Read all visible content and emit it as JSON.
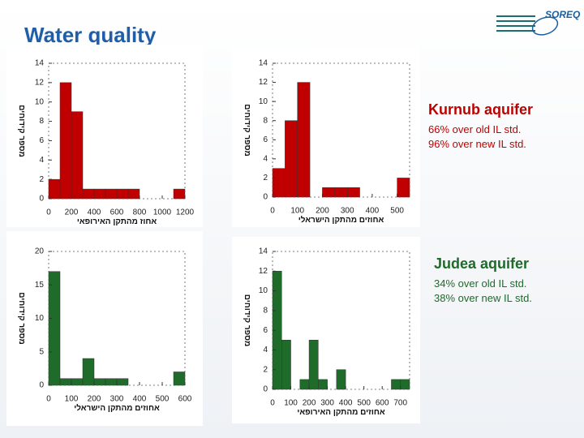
{
  "header": {
    "title": "Water quality",
    "logo": "SOREQ"
  },
  "notes": [
    {
      "heading": "Kurnub aquifer",
      "lines": [
        "66% over old IL std.",
        "96% over new IL std."
      ]
    },
    {
      "heading": "Judea aquifer",
      "lines": [
        "34% over old IL std.",
        "38% over new IL std."
      ]
    }
  ],
  "chart_data": [
    {
      "type": "histogram",
      "color": "#c00000",
      "ylabel": "מספר קידוחים",
      "xlabel": "אחוז מהתקן האירופאי",
      "bins": [
        0,
        100,
        200,
        300,
        400,
        500,
        600,
        700,
        800,
        900,
        1000,
        1100,
        1200
      ],
      "values": [
        2,
        12,
        9,
        1,
        1,
        1,
        1,
        1,
        0,
        0,
        0,
        1
      ],
      "xlim": [
        0,
        1200
      ],
      "xticks": [
        0,
        200,
        400,
        600,
        800,
        1000,
        1200
      ],
      "ylim": [
        0,
        14
      ],
      "yticks": [
        0,
        2,
        4,
        6,
        8,
        10,
        12,
        14
      ]
    },
    {
      "type": "histogram",
      "color": "#c00000",
      "ylabel": "מספר קידוחים",
      "xlabel": "אחוזים מהתקן הישראלי",
      "bins": [
        0,
        50,
        100,
        150,
        200,
        250,
        300,
        350,
        400,
        450,
        500,
        550
      ],
      "values": [
        3,
        8,
        12,
        0,
        1,
        1,
        1,
        0,
        0,
        0,
        2
      ],
      "xlim": [
        0,
        550
      ],
      "xticks": [
        0,
        100,
        200,
        300,
        400,
        500
      ],
      "ylim": [
        0,
        14
      ],
      "yticks": [
        0,
        2,
        4,
        6,
        8,
        10,
        12,
        14
      ]
    },
    {
      "type": "histogram",
      "color": "#1e6b2a",
      "ylabel": "מספר קידוחים",
      "xlabel": "אחוזים מהתקן הישראלי",
      "bins": [
        0,
        50,
        100,
        150,
        200,
        250,
        300,
        350,
        400,
        450,
        500,
        550,
        600
      ],
      "values": [
        17,
        1,
        1,
        4,
        1,
        1,
        1,
        0,
        0,
        0,
        0,
        2
      ],
      "xlim": [
        0,
        600
      ],
      "xticks": [
        0,
        100,
        200,
        300,
        400,
        500,
        600
      ],
      "ylim": [
        0,
        20
      ],
      "yticks": [
        0,
        5,
        10,
        15,
        20
      ]
    },
    {
      "type": "histogram",
      "color": "#1e6b2a",
      "ylabel": "מספר קידוחים",
      "xlabel": "אחוזים מהתקן האירופאי",
      "bins": [
        0,
        50,
        100,
        150,
        200,
        250,
        300,
        350,
        400,
        450,
        500,
        550,
        600,
        650,
        700,
        750
      ],
      "values": [
        12,
        5,
        0,
        1,
        5,
        1,
        0,
        2,
        0,
        0,
        0,
        0,
        0,
        1,
        1
      ],
      "xlim": [
        0,
        750
      ],
      "xticks": [
        0,
        100,
        200,
        300,
        400,
        500,
        600,
        700
      ],
      "ylim": [
        0,
        14
      ],
      "yticks": [
        0,
        2,
        4,
        6,
        8,
        10,
        12,
        14
      ]
    }
  ]
}
